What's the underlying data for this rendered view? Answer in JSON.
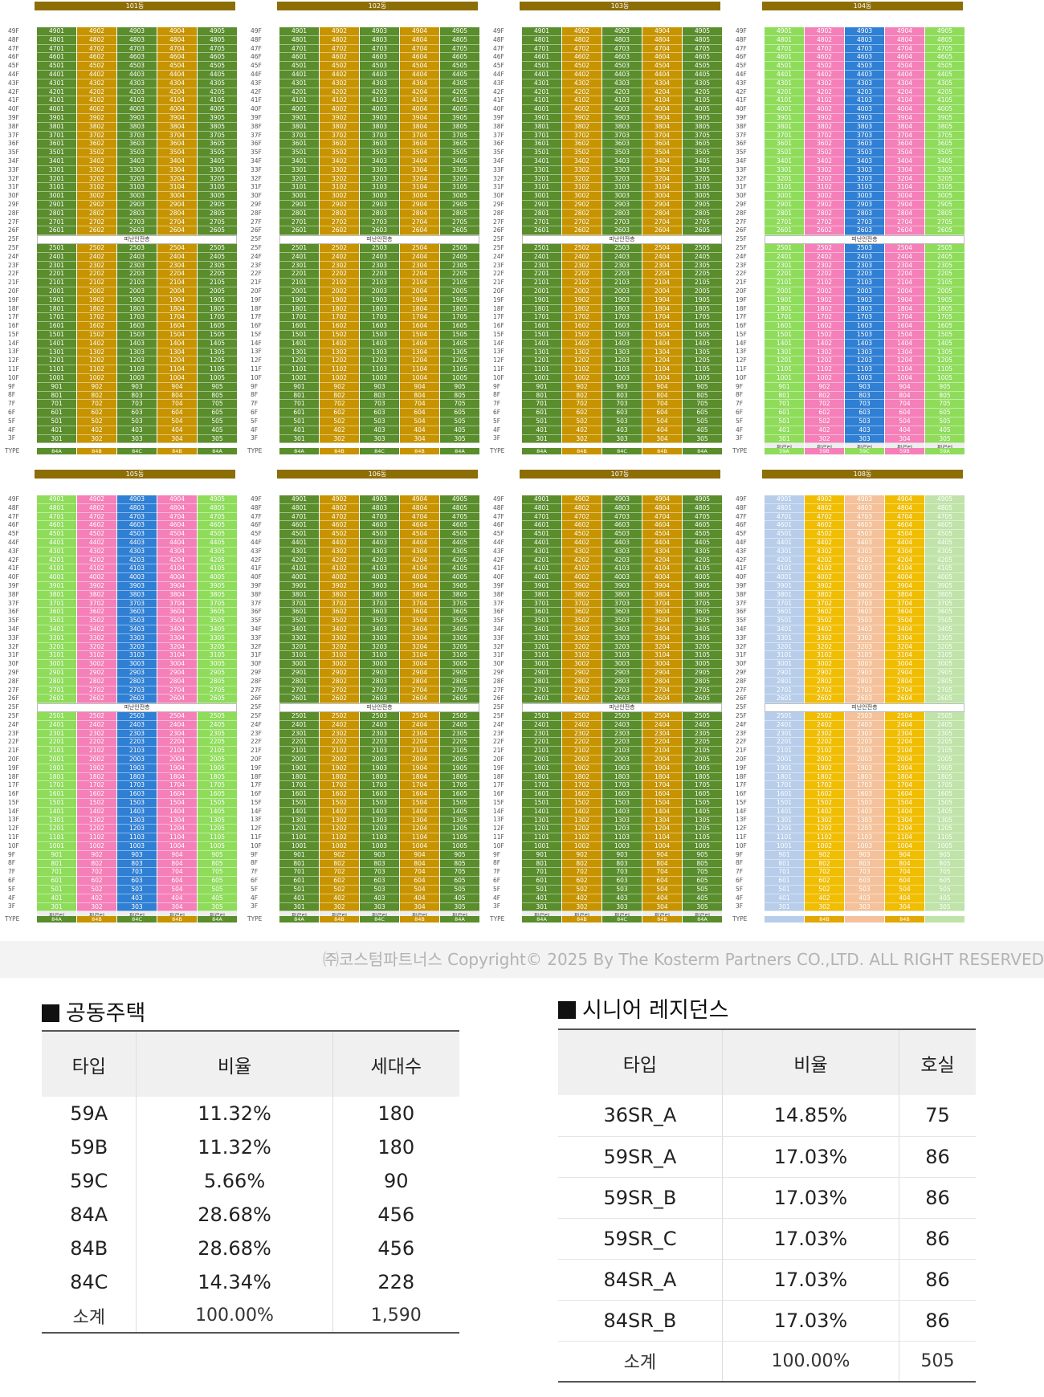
{
  "buildings": [
    {
      "name": "101동",
      "floors": 47,
      "gap_after": 25,
      "pilotis": false,
      "cols": [
        "g",
        "y",
        "g",
        "y",
        "g"
      ],
      "types": [
        "84A",
        "84B",
        "84C",
        "84B",
        "84A"
      ],
      "type_colors": [
        "#5a8d2c",
        "#c79400",
        "#5a8d2c",
        "#c79400",
        "#5a8d2c"
      ],
      "refuge": "피난안전층"
    },
    {
      "name": "102동",
      "floors": 47,
      "gap_after": 25,
      "pilotis": false,
      "cols": [
        "g",
        "y",
        "g",
        "y",
        "g"
      ],
      "types": [
        "84A",
        "84B",
        "84C",
        "84B",
        "84A"
      ],
      "type_colors": [
        "#5a8d2c",
        "#c79400",
        "#5a8d2c",
        "#c79400",
        "#5a8d2c"
      ],
      "refuge": "피난안전층"
    },
    {
      "name": "103동",
      "floors": 47,
      "gap_after": 25,
      "pilotis": false,
      "cols": [
        "g",
        "y",
        "g",
        "y",
        "g"
      ],
      "types": [
        "84A",
        "84B",
        "84C",
        "84B",
        "84A"
      ],
      "type_colors": [
        "#5a8d2c",
        "#c79400",
        "#5a8d2c",
        "#c79400",
        "#5a8d2c"
      ],
      "refuge": "피난안전층"
    },
    {
      "name": "104동",
      "floors": 47,
      "gap_after": 25,
      "pilotis": true,
      "cols": [
        "lg",
        "pk",
        "bl",
        "pk",
        "lg"
      ],
      "types": [
        "59A",
        "59B",
        "59C",
        "59B",
        "59A"
      ],
      "type_colors": [
        "#8edc5a",
        "#f57fb8",
        "#8edc5a",
        "#f57fb8",
        "#8edc5a"
      ],
      "refuge": "피난안전층"
    },
    {
      "name": "105동",
      "floors": 47,
      "gap_after": 25,
      "pilotis": true,
      "cols": [
        "lg",
        "pk",
        "bl",
        "pk",
        "lg"
      ],
      "types": [
        "84A",
        "84B",
        "84C",
        "84B",
        "84A"
      ],
      "type_colors": [
        "#5a8d2c",
        "#c79400",
        "#5a8d2c",
        "#c79400",
        "#5a8d2c"
      ],
      "refuge": "피난안전층"
    },
    {
      "name": "106동",
      "floors": 47,
      "gap_after": 25,
      "pilotis": true,
      "cols": [
        "g",
        "y",
        "g",
        "y",
        "g"
      ],
      "types": [
        "84A",
        "84B",
        "84C",
        "84B",
        "84A"
      ],
      "type_colors": [
        "#5a8d2c",
        "#c79400",
        "#5a8d2c",
        "#c79400",
        "#5a8d2c"
      ],
      "refuge": "피난안전층"
    },
    {
      "name": "107동",
      "floors": 47,
      "gap_after": 25,
      "pilotis": true,
      "cols": [
        "g",
        "y",
        "g",
        "y",
        "g"
      ],
      "types": [
        "84A",
        "84B",
        "84C",
        "84B",
        "84A"
      ],
      "type_colors": [
        "#5a8d2c",
        "#c79400",
        "#5a8d2c",
        "#c79400",
        "#5a8d2c"
      ],
      "refuge": "피난안전층"
    },
    {
      "name": "108동",
      "floors": 47,
      "gap_after": 25,
      "pilotis": false,
      "cols": [
        "sb",
        "gd",
        "pc",
        "gd",
        "lt"
      ],
      "types": [
        "",
        "84B",
        "",
        "84B",
        ""
      ],
      "type_colors": [
        "#b7cdea",
        "#e0a800",
        "#f4c19a",
        "#e0a800",
        "#bfe3a8"
      ],
      "refuge": "피난안전층"
    }
  ],
  "floor_suffix": "F",
  "pilotis_label": "필로티",
  "type_row_label": "TYPE",
  "copyright": "㈜코스텀파트너스 Copyright© 2025 By The Kosterm Partners CO.,LTD. ALL RIGHT RESERVED",
  "housing": {
    "title": "공동주택",
    "headers": [
      "타입",
      "비율",
      "세대수"
    ],
    "rows": [
      [
        "59A",
        "11.32%",
        "180"
      ],
      [
        "59B",
        "11.32%",
        "180"
      ],
      [
        "59C",
        "5.66%",
        "90"
      ],
      [
        "84A",
        "28.68%",
        "456"
      ],
      [
        "84B",
        "28.68%",
        "456"
      ],
      [
        "84C",
        "14.34%",
        "228"
      ],
      [
        "소계",
        "100.00%",
        "1,590"
      ]
    ]
  },
  "senior": {
    "title": "시니어 레지던스",
    "headers": [
      "타입",
      "비율",
      "호실"
    ],
    "rows": [
      [
        "36SR_A",
        "14.85%",
        "75"
      ],
      [
        "59SR_A",
        "17.03%",
        "86"
      ],
      [
        "59SR_B",
        "17.03%",
        "86"
      ],
      [
        "59SR_C",
        "17.03%",
        "86"
      ],
      [
        "84SR_A",
        "17.03%",
        "86"
      ],
      [
        "84SR_B",
        "17.03%",
        "86"
      ],
      [
        "소계",
        "100.00%",
        "505"
      ]
    ]
  },
  "palette": {
    "g": "#5a8d2c",
    "y": "#c79400",
    "lg": "#8edc5a",
    "pk": "#f57fb8",
    "bl": "#2f7fd4",
    "sb": "#b7cdea",
    "gd": "#f1bd00",
    "pc": "#f4c19a",
    "lt": "#bfe3a8",
    "header": "#8d6d06"
  }
}
